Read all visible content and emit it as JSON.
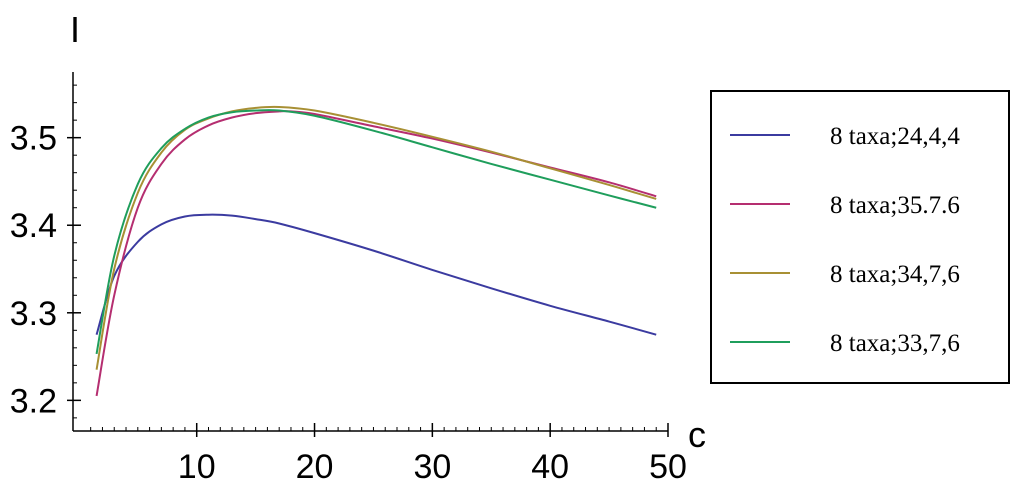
{
  "chart_data": {
    "type": "line",
    "xlabel": "c",
    "ylabel": "I",
    "xlim": [
      -0.5,
      50
    ],
    "ylim": [
      3.165,
      3.575
    ],
    "x_ticks": [
      10,
      20,
      30,
      40,
      50
    ],
    "y_ticks": [
      3.2,
      3.3,
      3.4,
      3.5
    ],
    "grid": false,
    "legend_position": "right",
    "series": [
      {
        "name": "8 taxa;24,4,4",
        "color": "#3b3ba0",
        "points": [
          [
            1.5,
            3.275
          ],
          [
            3,
            3.342
          ],
          [
            5,
            3.381
          ],
          [
            7,
            3.401
          ],
          [
            9,
            3.41
          ],
          [
            11,
            3.412
          ],
          [
            13,
            3.411
          ],
          [
            15,
            3.407
          ],
          [
            17,
            3.402
          ],
          [
            20,
            3.391
          ],
          [
            25,
            3.371
          ],
          [
            30,
            3.349
          ],
          [
            35,
            3.328
          ],
          [
            40,
            3.308
          ],
          [
            45,
            3.29
          ],
          [
            49,
            3.275
          ]
        ]
      },
      {
        "name": "8 taxa;35.7.6",
        "color": "#b52e70",
        "points": [
          [
            1.5,
            3.205
          ],
          [
            3,
            3.32
          ],
          [
            5,
            3.42
          ],
          [
            7,
            3.47
          ],
          [
            9,
            3.498
          ],
          [
            11,
            3.514
          ],
          [
            13,
            3.523
          ],
          [
            15,
            3.528
          ],
          [
            17,
            3.53
          ],
          [
            18,
            3.53
          ],
          [
            20,
            3.527
          ],
          [
            25,
            3.513
          ],
          [
            30,
            3.499
          ],
          [
            35,
            3.483
          ],
          [
            40,
            3.466
          ],
          [
            45,
            3.449
          ],
          [
            49,
            3.433
          ]
        ]
      },
      {
        "name": "8 taxa;34,7,6",
        "color": "#a89034",
        "points": [
          [
            1.5,
            3.235
          ],
          [
            3,
            3.35
          ],
          [
            5,
            3.437
          ],
          [
            7,
            3.483
          ],
          [
            9,
            3.509
          ],
          [
            11,
            3.522
          ],
          [
            13,
            3.53
          ],
          [
            15,
            3.534
          ],
          [
            17,
            3.535
          ],
          [
            20,
            3.531
          ],
          [
            25,
            3.517
          ],
          [
            30,
            3.501
          ],
          [
            35,
            3.484
          ],
          [
            40,
            3.465
          ],
          [
            45,
            3.446
          ],
          [
            49,
            3.43
          ]
        ]
      },
      {
        "name": "8 taxa;33,7,6",
        "color": "#1f9e5c",
        "points": [
          [
            1.5,
            3.253
          ],
          [
            3,
            3.365
          ],
          [
            5,
            3.447
          ],
          [
            7,
            3.488
          ],
          [
            9,
            3.51
          ],
          [
            11,
            3.523
          ],
          [
            13,
            3.529
          ],
          [
            15,
            3.531
          ],
          [
            17,
            3.531
          ],
          [
            20,
            3.525
          ],
          [
            25,
            3.508
          ],
          [
            30,
            3.489
          ],
          [
            35,
            3.47
          ],
          [
            40,
            3.452
          ],
          [
            45,
            3.434
          ],
          [
            49,
            3.42
          ]
        ]
      }
    ]
  }
}
